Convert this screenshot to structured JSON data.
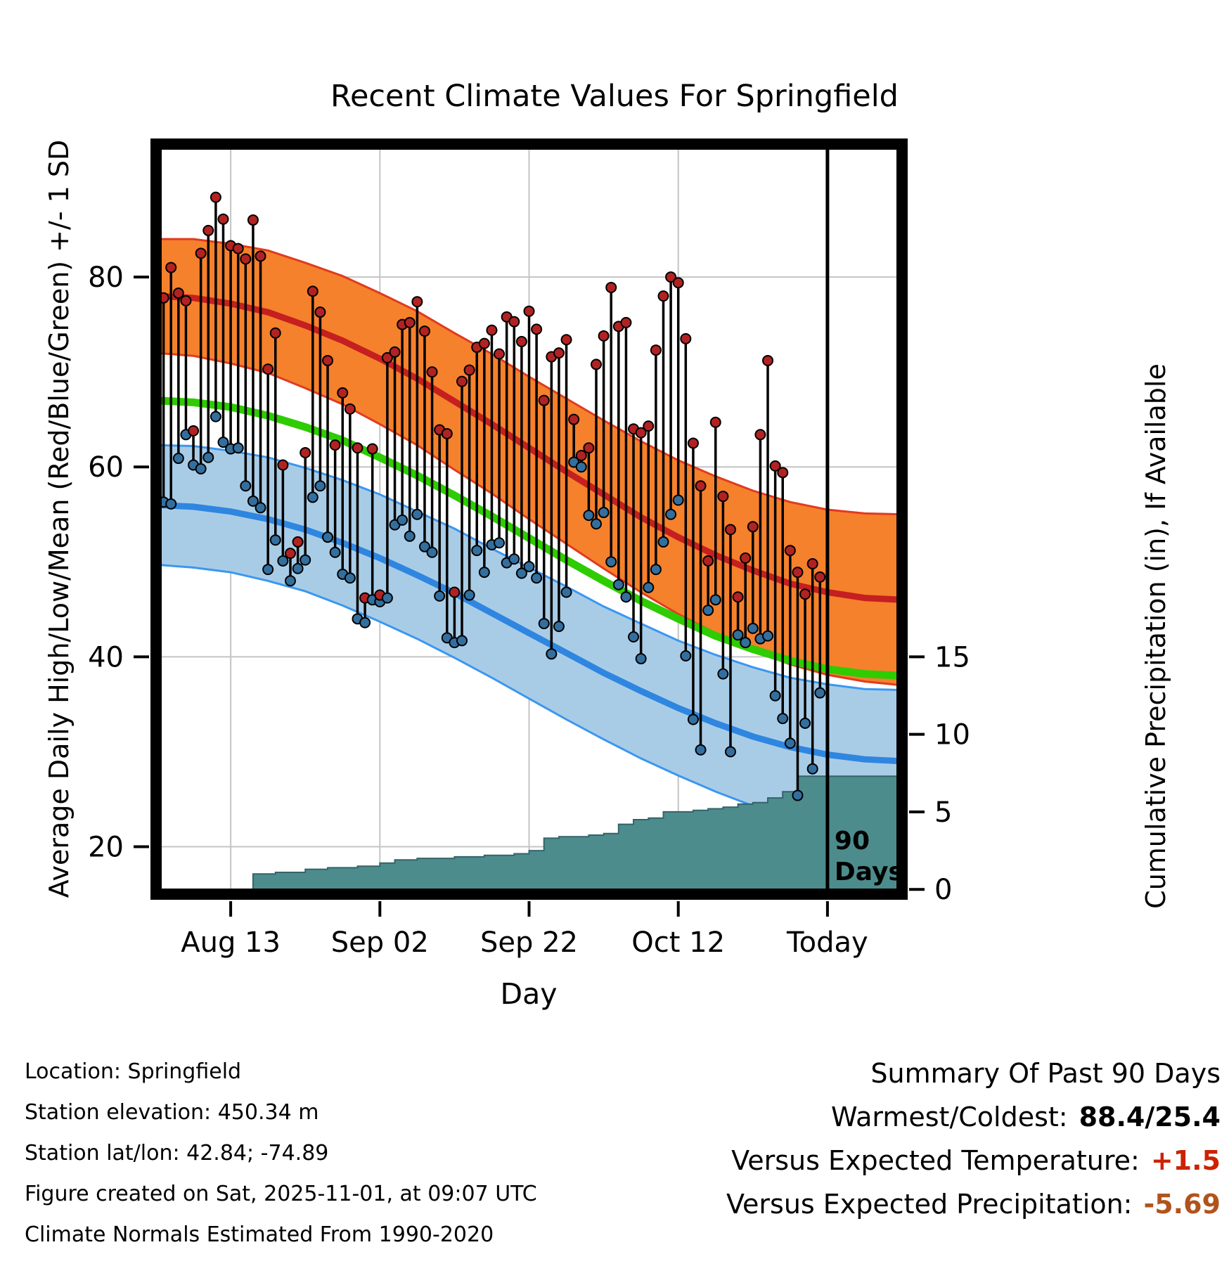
{
  "title": "Recent Climate Values For Springfield",
  "footer_left": [
    "Location: Springfield",
    "Station elevation: 450.34 m",
    "Station lat/lon: 42.84; -74.89",
    "Figure created on Sat, 2025-11-01, at 09:07 UTC",
    "Climate Normals Estimated From 1990-2020"
  ],
  "summary": {
    "title": "Summary Of Past 90 Days",
    "warmest_coldest_label": "Warmest/Coldest:",
    "warmest_coldest_value": "88.4/25.4",
    "vs_temp_label": "Versus Expected Temperature:",
    "vs_temp_value": "+1.5",
    "vs_precip_label": "Versus Expected Precipitation:",
    "vs_precip_value": "-5.69"
  },
  "colors": {
    "high_band": "#f5812c",
    "high_edge": "#e03b1f",
    "high_mean": "#c51f1f",
    "high_dot": "#b22222",
    "low_band": "#a9cce6",
    "low_edge": "#3b97f0",
    "low_mean": "#2e86e0",
    "low_dot": "#336f9e",
    "mean_line": "#2ecc00",
    "precip_fill": "#4d8c8c",
    "precip_edge": "#33646a",
    "daily_line": "#000000",
    "grid": "#c4c4c4",
    "vs_temp": "#cc2200",
    "vs_precip": "#b0541c"
  },
  "chart_data": {
    "type": "line",
    "title": "Recent Climate Values For Springfield",
    "xlabel": "Day",
    "ylabel_left": "Average Daily High/Low/Mean (Red/Blue/Green) +/- 1 SD",
    "ylabel_right": "Cumulative Precipitation (in), If Available",
    "x_ticks": [
      {
        "day": 10,
        "label": "Aug 13"
      },
      {
        "day": 30,
        "label": "Sep 02"
      },
      {
        "day": 50,
        "label": "Sep 22"
      },
      {
        "day": 70,
        "label": "Oct 12"
      },
      {
        "day": 90,
        "label": "Today"
      }
    ],
    "y_left_ticks": [
      20,
      40,
      60,
      80
    ],
    "y_right_ticks": [
      0,
      5,
      10,
      15
    ],
    "temp_range": [
      15,
      94
    ],
    "day_range": [
      0,
      100
    ],
    "precip_map": {
      "p0_temp": 15.5,
      "p15_temp": 40
    },
    "annotation": {
      "day": 90,
      "label": [
        "90",
        "Days"
      ]
    },
    "normals": {
      "days": [
        0,
        5,
        10,
        15,
        20,
        25,
        30,
        35,
        40,
        45,
        50,
        55,
        60,
        65,
        70,
        75,
        80,
        85,
        90,
        95,
        100
      ],
      "high_upper": [
        84.0,
        84.0,
        83.5,
        82.8,
        81.5,
        80.1,
        78.3,
        76.4,
        74.1,
        71.9,
        69.5,
        67.2,
        64.9,
        62.7,
        60.7,
        59.0,
        57.5,
        56.3,
        55.5,
        55.1,
        55.0
      ],
      "high_mean": [
        78.0,
        77.8,
        77.2,
        76.3,
        74.9,
        73.3,
        71.4,
        69.3,
        66.9,
        64.5,
        62.0,
        59.5,
        57.1,
        54.7,
        52.6,
        50.7,
        49.1,
        47.7,
        46.8,
        46.2,
        46.0
      ],
      "high_lower": [
        72.0,
        71.7,
        70.9,
        69.9,
        68.3,
        66.6,
        64.5,
        62.3,
        59.7,
        57.2,
        54.5,
        51.9,
        49.3,
        46.8,
        44.5,
        42.5,
        40.7,
        39.2,
        38.1,
        37.4,
        37.0
      ],
      "mean": [
        67.0,
        66.8,
        66.3,
        65.4,
        64.2,
        62.8,
        61.0,
        59.1,
        57.0,
        54.8,
        52.5,
        50.2,
        48.0,
        45.9,
        44.0,
        42.2,
        40.8,
        39.6,
        38.7,
        38.2,
        38.0
      ],
      "low_upper": [
        62.3,
        62.2,
        61.7,
        61.0,
        59.9,
        58.6,
        57.1,
        55.3,
        53.5,
        51.4,
        49.4,
        47.4,
        45.3,
        43.5,
        41.7,
        40.2,
        38.9,
        37.8,
        37.1,
        36.6,
        36.5
      ],
      "low_mean": [
        56.0,
        55.8,
        55.3,
        54.5,
        53.4,
        52.0,
        50.4,
        48.6,
        46.7,
        44.6,
        42.5,
        40.4,
        38.3,
        36.4,
        34.6,
        33.0,
        31.6,
        30.5,
        29.7,
        29.2,
        29.0
      ],
      "low_lower": [
        49.7,
        49.4,
        48.9,
        48.0,
        46.9,
        45.4,
        43.7,
        41.9,
        39.9,
        37.8,
        35.6,
        33.4,
        31.3,
        29.3,
        27.5,
        25.8,
        24.3,
        23.2,
        22.3,
        21.8,
        21.5
      ]
    },
    "daily": {
      "first_day": 0,
      "high": [
        77.3,
        77.8,
        81.0,
        78.3,
        77.5,
        63.8,
        82.5,
        84.9,
        88.4,
        86.1,
        83.3,
        83.0,
        81.9,
        86.0,
        82.2,
        70.3,
        74.1,
        60.2,
        50.9,
        52.1,
        61.5,
        78.5,
        76.3,
        71.2,
        62.3,
        67.8,
        66.1,
        62.0,
        46.2,
        61.9,
        46.5,
        71.5,
        72.1,
        75.0,
        75.2,
        77.4,
        74.3,
        70.0,
        63.9,
        63.5,
        46.8,
        69.0,
        70.2,
        72.6,
        73.0,
        74.4,
        71.9,
        75.8,
        75.3,
        73.2,
        76.4,
        74.5,
        67.0,
        71.6,
        72.0,
        73.4,
        65.0,
        61.2,
        62.0,
        70.8,
        73.8,
        78.9,
        74.8,
        75.2,
        64.0,
        63.6,
        64.3,
        72.3,
        78.0,
        80.0,
        79.4,
        73.5,
        62.5,
        58.0,
        50.1,
        64.7,
        56.9,
        53.4,
        46.3,
        50.4,
        53.7,
        63.4,
        71.2,
        60.1,
        59.4,
        51.2,
        48.9,
        46.6,
        49.8,
        48.4
      ],
      "low": [
        51.8,
        56.3,
        56.1,
        60.9,
        63.4,
        60.2,
        59.8,
        61.0,
        65.3,
        62.6,
        61.9,
        62.0,
        58.0,
        56.4,
        55.7,
        49.2,
        52.3,
        50.1,
        48.0,
        49.3,
        50.2,
        56.8,
        58.0,
        52.6,
        51.0,
        48.7,
        48.3,
        44.0,
        43.6,
        46.0,
        45.8,
        46.2,
        53.9,
        54.4,
        52.7,
        55.0,
        51.6,
        51.0,
        46.4,
        42.0,
        41.5,
        41.7,
        46.5,
        51.2,
        48.9,
        51.8,
        52.0,
        49.9,
        50.3,
        48.8,
        49.5,
        48.3,
        43.5,
        40.3,
        43.2,
        46.8,
        60.5,
        60.0,
        54.9,
        54.0,
        55.2,
        50.0,
        47.6,
        46.3,
        42.1,
        39.8,
        47.3,
        49.2,
        52.1,
        55.0,
        56.5,
        40.1,
        33.4,
        30.2,
        44.9,
        46.0,
        38.2,
        30.0,
        42.3,
        41.5,
        43.0,
        41.9,
        42.2,
        35.9,
        33.5,
        30.9,
        25.4,
        33.0,
        28.2,
        36.2
      ]
    },
    "precip_cumulative": [
      [
        0,
        0
      ],
      [
        12,
        0
      ],
      [
        13,
        1.0
      ],
      [
        16,
        1.1
      ],
      [
        20,
        1.3
      ],
      [
        23,
        1.4
      ],
      [
        27,
        1.5
      ],
      [
        30,
        1.7
      ],
      [
        32,
        1.9
      ],
      [
        35,
        2.0
      ],
      [
        40,
        2.1
      ],
      [
        44,
        2.2
      ],
      [
        48,
        2.3
      ],
      [
        50,
        2.5
      ],
      [
        52,
        3.3
      ],
      [
        54,
        3.4
      ],
      [
        58,
        3.5
      ],
      [
        60,
        3.6
      ],
      [
        62,
        4.2
      ],
      [
        64,
        4.5
      ],
      [
        66,
        4.6
      ],
      [
        68,
        5.0
      ],
      [
        72,
        5.1
      ],
      [
        74,
        5.2
      ],
      [
        76,
        5.3
      ],
      [
        78,
        5.5
      ],
      [
        80,
        5.6
      ],
      [
        82,
        5.9
      ],
      [
        84,
        6.3
      ],
      [
        86,
        7.3
      ],
      [
        100,
        7.3
      ]
    ]
  }
}
